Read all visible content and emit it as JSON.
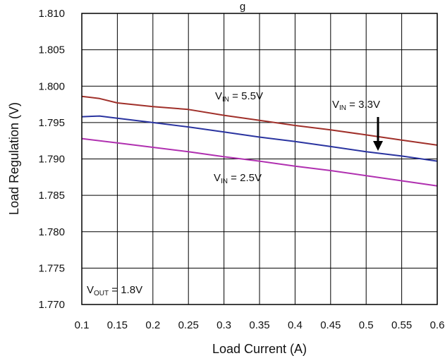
{
  "chart_data": {
    "type": "line",
    "xlabel": "Load Current (A)",
    "ylabel": "Load Regulation  (V)",
    "xlim": [
      0.1,
      0.6
    ],
    "ylim": [
      1.77,
      1.81
    ],
    "x_ticks": [
      "0.1",
      "0.15",
      "0.2",
      "0.25",
      "0.3",
      "0.35",
      "0.4",
      "0.45",
      "0.5",
      "0.55",
      "0.6"
    ],
    "y_ticks": [
      "1.810",
      "1.805",
      "1.800",
      "1.795",
      "1.790",
      "1.785",
      "1.780",
      "1.775",
      "1.770"
    ],
    "grid": true,
    "series": [
      {
        "name": "VIN = 5.5V",
        "color": "#a0302a",
        "x": [
          0.1,
          0.125,
          0.15,
          0.2,
          0.25,
          0.3,
          0.35,
          0.4,
          0.45,
          0.5,
          0.55,
          0.6
        ],
        "y": [
          1.7986,
          1.7983,
          1.7977,
          1.7972,
          1.7968,
          1.796,
          1.7953,
          1.7946,
          1.794,
          1.7933,
          1.7926,
          1.7919
        ]
      },
      {
        "name": "VIN = 3.3V",
        "color": "#2a34a0",
        "x": [
          0.1,
          0.125,
          0.15,
          0.2,
          0.25,
          0.3,
          0.35,
          0.4,
          0.45,
          0.5,
          0.55,
          0.6
        ],
        "y": [
          1.7958,
          1.7959,
          1.7956,
          1.795,
          1.7944,
          1.7937,
          1.793,
          1.7924,
          1.7917,
          1.791,
          1.7904,
          1.7897
        ]
      },
      {
        "name": "VIN = 2.5V",
        "color": "#b030b0",
        "x": [
          0.1,
          0.15,
          0.2,
          0.25,
          0.3,
          0.35,
          0.4,
          0.45,
          0.5,
          0.55,
          0.6
        ],
        "y": [
          1.7928,
          1.7922,
          1.7916,
          1.791,
          1.7903,
          1.7897,
          1.789,
          1.7884,
          1.7877,
          1.787,
          1.7863
        ]
      }
    ],
    "annotations": {
      "vin_55": {
        "pre": "V",
        "sub": "IN",
        "post": " = 5.5V"
      },
      "vin_33": {
        "pre": "V",
        "sub": "IN",
        "post": " = 3.3V"
      },
      "vin_25": {
        "pre": "V",
        "sub": "IN",
        "post": " = 2.5V"
      },
      "vout": {
        "pre": "V",
        "sub": "OUT",
        "post": " = 1.8V"
      }
    },
    "title_fragment": "g"
  }
}
